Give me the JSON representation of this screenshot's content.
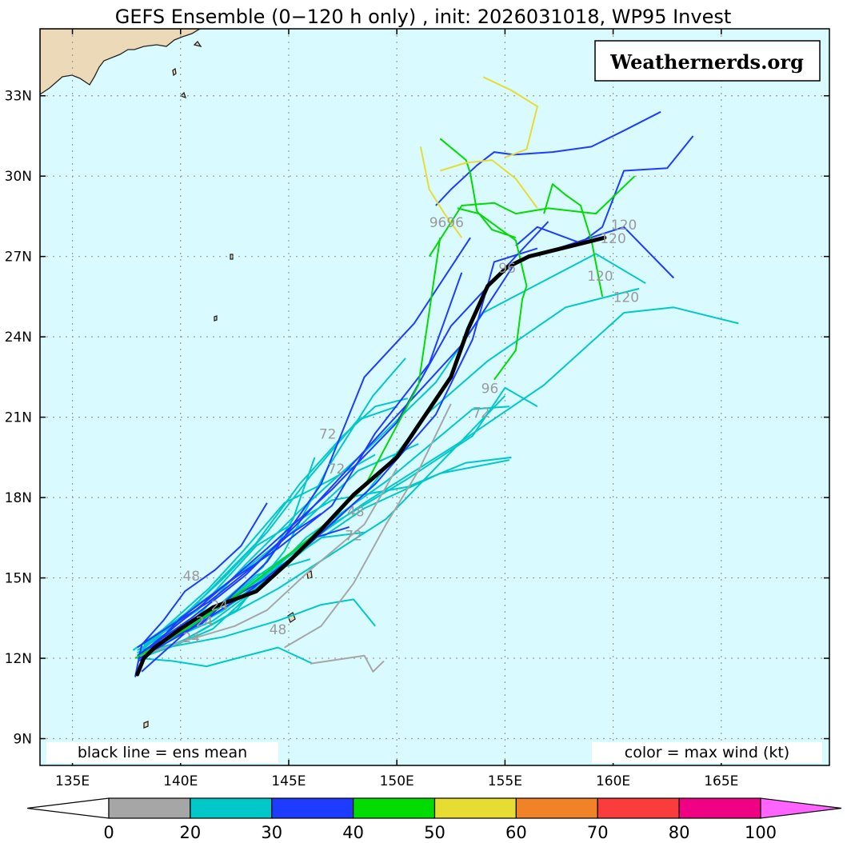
{
  "chart_data": {
    "type": "line",
    "title": "GEFS Ensemble (0−120 h only) , init: 2026031018, WP95 Invest",
    "watermark": "Weathernerds.org",
    "left_note": "black line = ens mean",
    "right_note": "color = max wind (kt)",
    "x_axis": {
      "ticks": [
        135,
        140,
        145,
        150,
        155,
        160,
        165
      ],
      "tick_labels": [
        "135E",
        "140E",
        "145E",
        "150E",
        "155E",
        "160E",
        "165E"
      ],
      "range": [
        133.5,
        170
      ]
    },
    "y_axis": {
      "ticks": [
        9,
        12,
        15,
        18,
        21,
        24,
        27,
        30,
        33
      ],
      "tick_labels": [
        "9N",
        "12N",
        "15N",
        "18N",
        "21N",
        "24N",
        "27N",
        "30N",
        "33N"
      ],
      "range": [
        8,
        35.5
      ]
    },
    "grid": true,
    "colorbar": {
      "labels": [
        "0",
        "20",
        "30",
        "40",
        "50",
        "60",
        "70",
        "80",
        "100"
      ],
      "colors": [
        "#a6a6a6",
        "#00c8c8",
        "#1e3cff",
        "#00dc00",
        "#e6dc32",
        "#f08228",
        "#fa3c3c",
        "#f00082",
        "#ff64ff"
      ]
    },
    "hour_labels": [
      {
        "text": "96",
        "lon": 151.9,
        "lat": 28.1
      },
      {
        "text": "96",
        "lon": 152.7,
        "lat": 28.1
      },
      {
        "text": "120",
        "lon": 160.5,
        "lat": 28.0
      },
      {
        "text": "120",
        "lon": 160.0,
        "lat": 27.5
      },
      {
        "text": "96",
        "lon": 155.1,
        "lat": 26.4
      },
      {
        "text": "120",
        "lon": 159.4,
        "lat": 26.1
      },
      {
        "text": "120",
        "lon": 160.6,
        "lat": 25.3
      },
      {
        "text": "96",
        "lon": 154.3,
        "lat": 21.9
      },
      {
        "text": "72",
        "lon": 153.9,
        "lat": 21.0
      },
      {
        "text": "72",
        "lon": 146.8,
        "lat": 20.2
      },
      {
        "text": "72",
        "lon": 147.2,
        "lat": 18.9
      },
      {
        "text": "48",
        "lon": 148.1,
        "lat": 17.3
      },
      {
        "text": "72",
        "lon": 148.0,
        "lat": 16.4
      },
      {
        "text": "48",
        "lon": 140.5,
        "lat": 14.9
      },
      {
        "text": "24",
        "lon": 141.8,
        "lat": 13.8
      },
      {
        "text": "48",
        "lon": 144.5,
        "lat": 12.9
      },
      {
        "text": "24",
        "lon": 141.1,
        "lat": 13.2
      },
      {
        "text": "24",
        "lon": 140.5,
        "lat": 12.6
      }
    ],
    "ens_mean": {
      "name": "ens mean",
      "lon": [
        138.0,
        138.3,
        138.8,
        140.0,
        141.5,
        143.5,
        145.0,
        146.5,
        148.0,
        150.0,
        151.0,
        152.5,
        153.3,
        154.2,
        155.1,
        156.1,
        158.1,
        159.6
      ],
      "lat": [
        11.4,
        12.0,
        12.4,
        13.1,
        13.9,
        14.5,
        15.6,
        16.8,
        18.1,
        19.5,
        20.7,
        22.5,
        24.3,
        25.9,
        26.6,
        27.0,
        27.4,
        27.7
      ]
    },
    "series": [
      {
        "color": "#00c8c8",
        "lon": [
          138.0,
          139.5,
          141.5,
          143.5,
          145.8,
          149.5,
          153.5,
          155.2
        ],
        "lat": [
          12.0,
          12.4,
          13.1,
          14.6,
          16.5,
          18.6,
          21.3,
          21.4
        ]
      },
      {
        "color": "#00c8c8",
        "lon": [
          137.8,
          139.6,
          142.8,
          145.6,
          148.2,
          151.0
        ],
        "lat": [
          12.3,
          13.3,
          15.2,
          17.0,
          19.0,
          20.0
        ]
      },
      {
        "color": "#00c8c8",
        "lon": [
          138.2,
          140.6,
          143.0,
          145.5,
          148.5,
          151.8,
          154.0,
          159.2,
          161.5
        ],
        "lat": [
          12.4,
          13.4,
          15.5,
          17.5,
          19.7,
          22.3,
          24.9,
          27.1,
          26.0
        ]
      },
      {
        "color": "#00c8c8",
        "lon": [
          138.3,
          140.8,
          143.5,
          147.0,
          150.5,
          153.2,
          155.3
        ],
        "lat": [
          12.5,
          13.8,
          16.2,
          17.9,
          18.4,
          19.3,
          19.5
        ]
      },
      {
        "color": "#00c8c8",
        "lon": [
          138.2,
          140.2,
          142.6,
          144.8,
          146.8,
          148.9,
          150.4
        ],
        "lat": [
          12.0,
          12.7,
          13.8,
          16.0,
          19.1,
          21.8,
          23.2
        ]
      },
      {
        "color": "#00c8c8",
        "lon": [
          138.0,
          139.5,
          141.3,
          143.5,
          145.5,
          147.5,
          149.0,
          150.5
        ],
        "lat": [
          12.3,
          13.0,
          14.5,
          16.3,
          18.5,
          20.3,
          21.4,
          21.7
        ]
      },
      {
        "color": "#00c8c8",
        "lon": [
          138.0,
          140.0,
          142.6,
          145.0,
          148.5,
          152.8,
          156.8,
          160.5,
          162.8,
          165.8
        ],
        "lat": [
          12.2,
          13.0,
          14.3,
          15.8,
          17.8,
          20.0,
          22.2,
          24.9,
          25.1,
          24.5
        ]
      },
      {
        "color": "#00c8c8",
        "lon": [
          138.2,
          139.5,
          141.5,
          143.8,
          147.0,
          150.5,
          153.5,
          155.0,
          156.5
        ],
        "lat": [
          12.0,
          12.7,
          13.7,
          15.2,
          17.0,
          18.7,
          20.3,
          22.1,
          21.4
        ]
      },
      {
        "color": "#00c8c8",
        "lon": [
          138.2,
          140.0,
          142.0,
          144.0,
          146.0,
          148.2,
          150.0
        ],
        "lat": [
          12.3,
          13.5,
          15.0,
          16.7,
          18.8,
          20.9,
          21.4
        ]
      },
      {
        "color": "#00c8c8",
        "lon": [
          138.1,
          139.5,
          141.3,
          143.0,
          144.8,
          146.8,
          149.0
        ],
        "lat": [
          12.3,
          13.3,
          14.6,
          16.1,
          17.8,
          18.6,
          19.6
        ]
      },
      {
        "color": "#00c8c8",
        "lon": [
          138.1,
          140.2,
          142.5,
          145.5,
          148.6,
          151.5,
          154.2,
          157.8,
          161.2
        ],
        "lat": [
          12.2,
          13.0,
          14.1,
          16.0,
          18.2,
          21.2,
          23.1,
          25.1,
          25.8
        ]
      },
      {
        "color": "#00c8c8",
        "lon": [
          138.1,
          139.9,
          141.8,
          143.8,
          145.2,
          146.2
        ],
        "lat": [
          12.1,
          12.9,
          14.0,
          15.4,
          17.2,
          19.5
        ]
      },
      {
        "color": "#00c8c8",
        "lon": [
          138.1,
          139.6,
          141.2,
          142.6,
          144.5,
          146.1
        ],
        "lat": [
          12.0,
          11.9,
          11.7,
          12.0,
          12.4,
          11.8
        ]
      },
      {
        "color": "#00c8c8",
        "lon": [
          138.0,
          140.0,
          142.0,
          144.0,
          146.5,
          148.5
        ],
        "lat": [
          12.2,
          12.9,
          13.8,
          15.1,
          16.5,
          16.7
        ]
      },
      {
        "color": "#00c8c8",
        "lon": [
          138.1,
          139.5,
          141.5,
          143.5,
          145.8,
          148.5,
          152.0,
          155.2
        ],
        "lat": [
          12.2,
          12.7,
          13.4,
          14.6,
          16.1,
          17.6,
          18.9,
          19.4
        ]
      },
      {
        "color": "#00c8c8",
        "lon": [
          138.0,
          140.0,
          142.0,
          144.5,
          147.0,
          149.5,
          152.5,
          155.0
        ],
        "lat": [
          12.2,
          12.6,
          13.5,
          14.6,
          15.9,
          17.2,
          19.7,
          21.8
        ]
      },
      {
        "color": "#00c8c8",
        "lon": [
          138.3,
          140.0,
          141.8,
          143.5,
          146.0
        ],
        "lat": [
          12.2,
          12.9,
          13.9,
          15.1,
          15.7
        ]
      },
      {
        "color": "#00c8c8",
        "lon": [
          138.1,
          140.0,
          142.0,
          144.5,
          146.5,
          148.0,
          149.0
        ],
        "lat": [
          12.2,
          12.5,
          12.8,
          13.4,
          14.0,
          14.2,
          13.2
        ]
      },
      {
        "color": "#a6a6a6",
        "lon": [
          138.2,
          140.0,
          142.5,
          144.0,
          146.0,
          148.5,
          150.0
        ],
        "lat": [
          12.1,
          12.6,
          13.2,
          13.8,
          15.3,
          17.0,
          19.1
        ]
      },
      {
        "color": "#a6a6a6",
        "lon": [
          144.8,
          146.5,
          148.0,
          149.5,
          151.0,
          152.5
        ],
        "lat": [
          12.4,
          13.2,
          14.8,
          17.0,
          19.0,
          21.5
        ]
      },
      {
        "color": "#a6a6a6",
        "lon": [
          146.0,
          148.5,
          148.9,
          149.4
        ],
        "lat": [
          11.8,
          12.1,
          11.5,
          11.9
        ]
      },
      {
        "color": "#1e3cff",
        "lon": [
          137.9,
          138.2,
          139.2,
          140.2,
          141.6,
          142.8,
          144.0
        ],
        "lat": [
          11.3,
          12.5,
          13.4,
          14.5,
          15.3,
          16.2,
          17.8
        ]
      },
      {
        "color": "#1e3cff",
        "lon": [
          138.0,
          139.5,
          141.3,
          143.0,
          145.0,
          146.5
        ],
        "lat": [
          12.4,
          13.2,
          14.1,
          15.2,
          16.6,
          17.4
        ]
      },
      {
        "color": "#1e3cff",
        "lon": [
          138.2,
          140.0,
          142.0,
          144.5,
          146.2,
          147.8
        ],
        "lat": [
          11.5,
          12.8,
          14.1,
          15.2,
          16.5,
          16.9
        ]
      },
      {
        "color": "#1e3cff",
        "lon": [
          138.3,
          141.0,
          144.0,
          146.5,
          148.5,
          150.8,
          153.4
        ],
        "lat": [
          12.3,
          13.3,
          15.6,
          18.5,
          22.5,
          24.5,
          27.7
        ]
      },
      {
        "color": "#1e3cff",
        "lon": [
          138.0,
          140.5,
          143.0,
          145.5,
          148.0,
          150.5,
          153.0,
          155.5,
          160.5,
          162.8
        ],
        "lat": [
          12.1,
          13.5,
          15.1,
          17.1,
          19.3,
          21.5,
          23.7,
          26.8,
          28.1,
          26.2
        ]
      },
      {
        "color": "#1e3cff",
        "lon": [
          138.2,
          141.0,
          144.0,
          147.0,
          150.0,
          152.5,
          154.8,
          157.0
        ],
        "lat": [
          12.2,
          14.0,
          16.1,
          18.3,
          20.8,
          24.4,
          26.4,
          28.3
        ]
      },
      {
        "color": "#1e3cff",
        "lon": [
          138.1,
          140.5,
          143.0,
          146.0,
          149.0,
          151.8,
          153.5,
          154.5,
          156.5
        ],
        "lat": [
          12.0,
          13.1,
          14.4,
          16.3,
          18.5,
          21.1,
          23.9,
          26.8,
          27.3
        ]
      },
      {
        "color": "#1e3cff",
        "lon": [
          138.1,
          140.0,
          142.5,
          144.5,
          147.0,
          149.0,
          151.5,
          153.0
        ],
        "lat": [
          11.9,
          13.5,
          15.0,
          16.1,
          17.7,
          20.4,
          23.0,
          26.4
        ]
      },
      {
        "color": "#1e3cff",
        "lon": [
          151.8,
          152.5,
          153.7,
          154.5,
          155.4,
          157.2,
          159.0,
          160.5,
          162.2
        ],
        "lat": [
          28.9,
          29.5,
          30.4,
          30.9,
          30.8,
          30.9,
          31.1,
          31.7,
          32.4
        ]
      },
      {
        "color": "#1e3cff",
        "lon": [
          155.5,
          156.5,
          158.5,
          159.5,
          160.5,
          162.5,
          163.7
        ],
        "lat": [
          27.4,
          28.1,
          27.5,
          28.1,
          30.2,
          30.3,
          31.5
        ]
      },
      {
        "color": "#00dc00",
        "lon": [
          137.9,
          140.5,
          143.0,
          146.0,
          148.5,
          151.0,
          152.0
        ],
        "lat": [
          12.0,
          13.2,
          14.6,
          16.5,
          18.4,
          22.2,
          27.7
        ]
      },
      {
        "color": "#00dc00",
        "lon": [
          151.5,
          153.0,
          154.5,
          155.5,
          157.0,
          159.2,
          161.0
        ],
        "lat": [
          27.0,
          28.9,
          29.0,
          28.6,
          28.8,
          28.6,
          30.0
        ]
      },
      {
        "color": "#00dc00",
        "lon": [
          152.8,
          153.8,
          155.5,
          156.0,
          155.8,
          155.5,
          154.5
        ],
        "lat": [
          28.8,
          28.6,
          27.6,
          25.9,
          25.4,
          23.5,
          22.4
        ]
      },
      {
        "color": "#00dc00",
        "lon": [
          156.8,
          157.2,
          157.8,
          158.5,
          159.0,
          159.5
        ],
        "lat": [
          28.6,
          29.7,
          29.3,
          28.9,
          27.6,
          25.5
        ]
      },
      {
        "color": "#00dc00",
        "lon": [
          152.0,
          153.2,
          153.4,
          153.7,
          154.4,
          155.5
        ],
        "lat": [
          31.4,
          30.6,
          30.1,
          28.7,
          28.0,
          27.7
        ]
      },
      {
        "color": "#e6dc32",
        "lon": [
          151.1,
          151.5,
          152.2,
          153.0
        ],
        "lat": [
          31.1,
          29.5,
          28.6,
          27.7
        ]
      },
      {
        "color": "#e6dc32",
        "lon": [
          152.0,
          153.2,
          154.4,
          155.5,
          156.5
        ],
        "lat": [
          30.2,
          30.5,
          30.6,
          29.9,
          28.8
        ]
      },
      {
        "color": "#e6dc32",
        "lon": [
          154.0,
          155.3,
          156.5,
          156.0,
          155.0
        ],
        "lat": [
          33.7,
          33.2,
          32.6,
          31.0,
          30.7
        ]
      }
    ]
  }
}
